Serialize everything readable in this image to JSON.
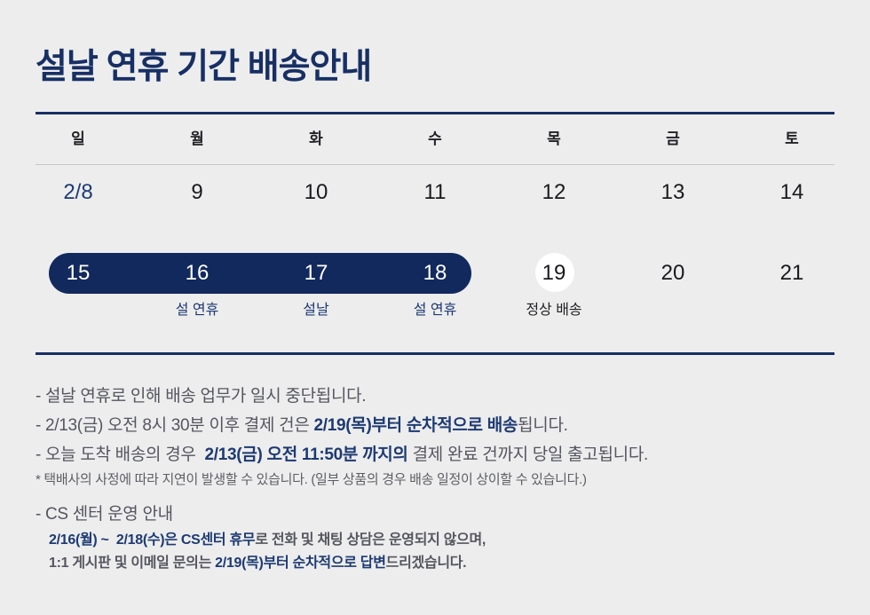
{
  "page": {
    "title": "설날 연휴 기간 배송안내",
    "colors": {
      "background": "#ededee",
      "navy_primary": "#172f64",
      "navy_pill": "#12295e",
      "navy_highlight": "#1d3a72",
      "text_gray": "#55565e",
      "text_dark": "#1a1a1e",
      "circle_white": "#ffffff"
    }
  },
  "calendar": {
    "weekdays": [
      "일",
      "월",
      "화",
      "수",
      "목",
      "금",
      "토"
    ],
    "week1": [
      "2/8",
      "9",
      "10",
      "11",
      "12",
      "13",
      "14"
    ],
    "week2": [
      "15",
      "16",
      "17",
      "18",
      "19",
      "20",
      "21"
    ],
    "labels": {
      "day16": "설 연휴",
      "day17": "설날",
      "day18": "설 연휴",
      "day19": "정상 배송"
    },
    "highlight_range": "2/15 ~ 2/18",
    "normal_delivery_day": "19"
  },
  "notes": {
    "line1": "- 설날 연휴로 인해 배송 업무가 일시 중단됩니다.",
    "line2_pre": "- 2/13(금) 오전 8시 30분 이후 결제 건은 ",
    "line2_em": "2/19(목)부터 순차적으로 배송",
    "line2_post": "됩니다.",
    "line3_pre": "- 오늘 도착 배송의 경우  ",
    "line3_em": "2/13(금) 오전 11:50분 까지의",
    "line3_post": " 결제 완료 건까지 당일 출고됩니다.",
    "asterisk": "* 택배사의 사정에 따라 지연이 발생할 수 있습니다. (일부 상품의 경우 배송 일정이 상이할 수 있습니다.)",
    "cs_title": "- CS 센터 운영 안내",
    "cs1_em": "2/16(월) ~  2/18(수)은 CS센터 휴무",
    "cs1_post": "로 전화 및 채팅 상담은 운영되지 않으며,",
    "cs2_pre": "1:1 게시판 및 이메일 문의는 ",
    "cs2_em": "2/19(목)부터 순차적으로 답변",
    "cs2_post": "드리겠습니다."
  }
}
